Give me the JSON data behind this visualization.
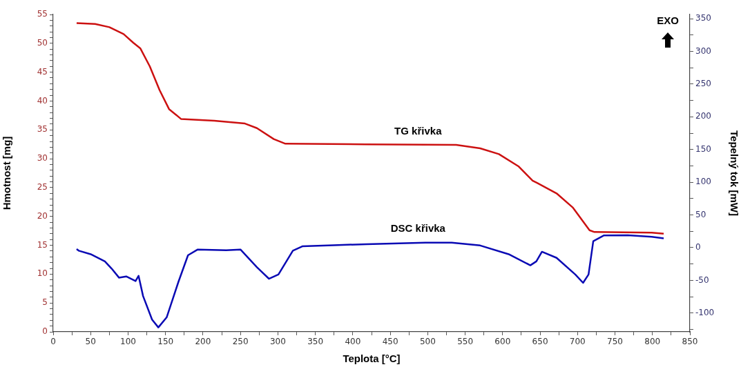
{
  "chart_data": {
    "type": "line",
    "xlabel": "Teplota [°C]",
    "ylabel": "Hmotnost [mg]",
    "y2label": "Tepelný tok [mW]",
    "annotations": [
      "EXO"
    ],
    "grid": false,
    "legend": false,
    "marker": "none",
    "line_style": "solid",
    "xlim": [
      0,
      850
    ],
    "xticks": [
      0,
      {
        "value": 25,
        "label": null
      },
      50,
      {
        "value": 75,
        "label": null
      },
      100,
      {
        "value": 125,
        "label": null
      },
      150,
      {
        "value": 175,
        "label": null
      },
      200,
      {
        "value": 225,
        "label": null
      },
      250,
      {
        "value": 275,
        "label": null
      },
      300,
      {
        "value": 325,
        "label": null
      },
      350,
      {
        "value": 375,
        "label": null
      },
      400,
      {
        "value": 425,
        "label": null
      },
      450,
      {
        "value": 475,
        "label": null
      },
      500,
      {
        "value": 525,
        "label": null
      },
      550,
      {
        "value": 575,
        "label": null
      },
      600,
      {
        "value": 625,
        "label": null
      },
      650,
      {
        "value": 675,
        "label": null
      },
      700,
      {
        "value": 725,
        "label": null
      },
      750,
      {
        "value": 775,
        "label": null
      },
      800,
      {
        "value": 825,
        "label": null
      },
      850
    ],
    "ylim": [
      0,
      55
    ],
    "yticks": [
      0,
      {
        "value": 1,
        "label": null
      },
      {
        "value": 2,
        "label": null
      },
      {
        "value": 3,
        "label": null
      },
      {
        "value": 4,
        "label": null
      },
      5,
      {
        "value": 6,
        "label": null
      },
      {
        "value": 7,
        "label": null
      },
      {
        "value": 8,
        "label": null
      },
      {
        "value": 9,
        "label": null
      },
      10,
      {
        "value": 11,
        "label": null
      },
      {
        "value": 12,
        "label": null
      },
      {
        "value": 13,
        "label": null
      },
      {
        "value": 14,
        "label": null
      },
      15,
      {
        "value": 16,
        "label": null
      },
      {
        "value": 17,
        "label": null
      },
      {
        "value": 18,
        "label": null
      },
      {
        "value": 19,
        "label": null
      },
      20,
      {
        "value": 21,
        "label": null
      },
      {
        "value": 22,
        "label": null
      },
      {
        "value": 23,
        "label": null
      },
      {
        "value": 24,
        "label": null
      },
      25,
      {
        "value": 26,
        "label": null
      },
      {
        "value": 27,
        "label": null
      },
      {
        "value": 28,
        "label": null
      },
      {
        "value": 29,
        "label": null
      },
      30,
      {
        "value": 31,
        "label": null
      },
      {
        "value": 32,
        "label": null
      },
      {
        "value": 33,
        "label": null
      },
      {
        "value": 34,
        "label": null
      },
      35,
      {
        "value": 36,
        "label": null
      },
      {
        "value": 37,
        "label": null
      },
      {
        "value": 38,
        "label": null
      },
      {
        "value": 39,
        "label": null
      },
      40,
      {
        "value": 41,
        "label": null
      },
      {
        "value": 42,
        "label": null
      },
      {
        "value": 43,
        "label": null
      },
      {
        "value": 44,
        "label": null
      },
      45,
      {
        "value": 46,
        "label": null
      },
      {
        "value": 47,
        "label": null
      },
      {
        "value": 48,
        "label": null
      },
      {
        "value": 49,
        "label": null
      },
      50,
      {
        "value": 51,
        "label": null
      },
      {
        "value": 52,
        "label": null
      },
      {
        "value": 53,
        "label": null
      },
      {
        "value": 54,
        "label": null
      },
      55
    ],
    "y2lim": [
      -128.7,
      356.5
    ],
    "y2ticks": [
      {
        "value": -125,
        "label": null
      },
      -100,
      {
        "value": -75,
        "label": null
      },
      -50,
      {
        "value": -25,
        "label": null
      },
      0,
      {
        "value": 25,
        "label": null
      },
      50,
      {
        "value": 75,
        "label": null
      },
      100,
      {
        "value": 125,
        "label": null
      },
      150,
      {
        "value": 175,
        "label": null
      },
      200,
      {
        "value": 225,
        "label": null
      },
      250,
      {
        "value": 275,
        "label": null
      },
      300,
      {
        "value": 325,
        "label": null
      },
      350
    ],
    "series": [
      {
        "name": "TG křivka",
        "color": "#cc1111",
        "x": [
          31.3,
          56,
          75,
          94,
          107,
          116.5,
          129,
          142,
          154.7,
          170.6,
          215,
          256,
          272,
          294.5,
          310,
          417.5,
          538,
          570,
          595,
          621,
          640,
          646,
          672,
          694,
          716,
          722.5,
          799,
          815
        ],
        "values": [
          53.5,
          53.35,
          52.8,
          51.6,
          50.1,
          49.1,
          46.0,
          41.9,
          38.6,
          36.9,
          36.6,
          36.1,
          35.3,
          33.4,
          32.6,
          32.5,
          32.4,
          31.8,
          30.8,
          28.7,
          26.2,
          25.8,
          24.0,
          21.5,
          17.6,
          17.3,
          17.2,
          17.0
        ]
      },
      {
        "name": "DSC křivka",
        "color": "#0a0ab4",
        "axis": "y2",
        "x": [
          31.3,
          34,
          50,
          69,
          78,
          88,
          97.5,
          110,
          114,
          120,
          132,
          140.4,
          151.5,
          167.4,
          180,
          193,
          231,
          250,
          272,
          288,
          300.7,
          320,
          332.6,
          374,
          418.4,
          497,
          532,
          570,
          608,
          637,
          645,
          652.5,
          672,
          697,
          707.4,
          714.7,
          721,
          735,
          767,
          799,
          815
        ],
        "values": [
          -2.1,
          -4.6,
          -10,
          -21,
          -32,
          -46,
          -44,
          -51,
          -43,
          -74,
          -110,
          -122,
          -106.6,
          -51.7,
          -11.6,
          -2.8,
          -3.9,
          -2.8,
          -30,
          -47.5,
          -41,
          -4.6,
          2,
          3.7,
          5.3,
          7.7,
          7.7,
          3.3,
          -10,
          -27,
          -21,
          -6.3,
          -15.6,
          -41,
          -53.8,
          -41,
          9.8,
          18.6,
          19,
          16.5,
          14.2
        ]
      }
    ]
  }
}
